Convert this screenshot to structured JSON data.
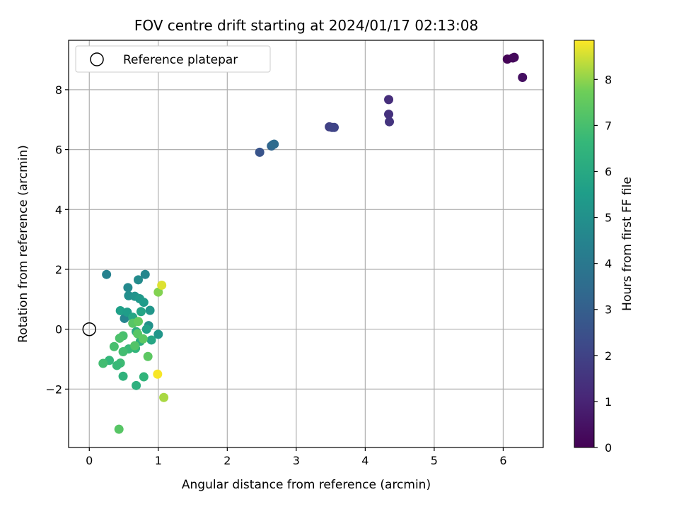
{
  "chart_data": {
    "type": "scatter",
    "title": "FOV centre drift starting at 2024/01/17 02:13:08",
    "xlabel": "Angular distance from reference (arcmin)",
    "ylabel": "Rotation from reference (arcmin)",
    "xlim": [
      -0.3,
      6.58
    ],
    "ylim": [
      -3.95,
      9.65
    ],
    "xticks": [
      0,
      1,
      2,
      3,
      4,
      5,
      6
    ],
    "xtick_labels": [
      "0",
      "1",
      "2",
      "3",
      "4",
      "5",
      "6"
    ],
    "yticks": [
      -2,
      0,
      2,
      4,
      6,
      8
    ],
    "ytick_labels": [
      "−2",
      "0",
      "2",
      "4",
      "6",
      "8"
    ],
    "grid": true,
    "legend": {
      "placement": "top-left",
      "entries": [
        "Reference platepar"
      ]
    },
    "reference_point": {
      "x": 0,
      "y": 0,
      "name": "Reference platepar",
      "marker": "open-circle"
    },
    "colorbar": {
      "label": "Hours from first FF file",
      "colormap": "viridis",
      "range": [
        0,
        8.85
      ],
      "ticks": [
        0,
        1,
        2,
        3,
        4,
        5,
        6,
        7,
        8
      ],
      "tick_labels": [
        "0",
        "1",
        "2",
        "3",
        "4",
        "5",
        "6",
        "7",
        "8"
      ]
    },
    "points": [
      {
        "x": 6.06,
        "y": 9.02,
        "c": 0.05
      },
      {
        "x": 6.14,
        "y": 9.06,
        "c": 0.15
      },
      {
        "x": 6.16,
        "y": 9.08,
        "c": 0.25
      },
      {
        "x": 6.28,
        "y": 8.41,
        "c": 0.4
      },
      {
        "x": 4.34,
        "y": 7.67,
        "c": 1.3
      },
      {
        "x": 4.34,
        "y": 7.18,
        "c": 1.4
      },
      {
        "x": 4.35,
        "y": 6.93,
        "c": 1.5
      },
      {
        "x": 3.48,
        "y": 6.76,
        "c": 1.9
      },
      {
        "x": 3.52,
        "y": 6.74,
        "c": 2.0
      },
      {
        "x": 3.55,
        "y": 6.74,
        "c": 2.05
      },
      {
        "x": 2.47,
        "y": 5.91,
        "c": 2.6
      },
      {
        "x": 2.64,
        "y": 6.12,
        "c": 3.2
      },
      {
        "x": 2.66,
        "y": 6.16,
        "c": 3.35
      },
      {
        "x": 2.68,
        "y": 6.18,
        "c": 3.5
      },
      {
        "x": 0.25,
        "y": 1.83,
        "c": 4.4
      },
      {
        "x": 0.81,
        "y": 1.83,
        "c": 4.6
      },
      {
        "x": 0.71,
        "y": 1.65,
        "c": 4.8
      },
      {
        "x": 0.56,
        "y": 1.39,
        "c": 4.7
      },
      {
        "x": 0.57,
        "y": 1.12,
        "c": 4.9
      },
      {
        "x": 0.66,
        "y": 1.1,
        "c": 5.1
      },
      {
        "x": 0.73,
        "y": 1.02,
        "c": 5.3
      },
      {
        "x": 0.79,
        "y": 0.9,
        "c": 5.4
      },
      {
        "x": 0.51,
        "y": 0.36,
        "c": 4.5
      },
      {
        "x": 0.88,
        "y": 0.63,
        "c": 5.2
      },
      {
        "x": 0.45,
        "y": 0.62,
        "c": 5.6
      },
      {
        "x": 0.55,
        "y": 0.57,
        "c": 5.5
      },
      {
        "x": 0.75,
        "y": 0.59,
        "c": 5.8
      },
      {
        "x": 0.63,
        "y": 0.4,
        "c": 5.9
      },
      {
        "x": 0.86,
        "y": 0.12,
        "c": 5.0
      },
      {
        "x": 1.0,
        "y": -0.17,
        "c": 5.2
      },
      {
        "x": 0.83,
        "y": 0.0,
        "c": 5.7
      },
      {
        "x": 0.9,
        "y": -0.36,
        "c": 5.9
      },
      {
        "x": 0.68,
        "y": -0.08,
        "c": 6.1
      },
      {
        "x": 0.74,
        "y": -0.4,
        "c": 6.2
      },
      {
        "x": 0.67,
        "y": -0.64,
        "c": 6.5
      },
      {
        "x": 0.57,
        "y": -0.66,
        "c": 6.7
      },
      {
        "x": 0.63,
        "y": 0.2,
        "c": 7.3
      },
      {
        "x": 0.71,
        "y": 0.26,
        "c": 7.5
      },
      {
        "x": 0.7,
        "y": -0.15,
        "c": 7.3
      },
      {
        "x": 0.78,
        "y": -0.32,
        "c": 7.4
      },
      {
        "x": 0.66,
        "y": -0.55,
        "c": 7.2
      },
      {
        "x": 0.49,
        "y": -0.22,
        "c": 7.0
      },
      {
        "x": 0.44,
        "y": -0.3,
        "c": 7.1
      },
      {
        "x": 0.36,
        "y": -0.58,
        "c": 7.0
      },
      {
        "x": 0.49,
        "y": -0.75,
        "c": 6.9
      },
      {
        "x": 0.45,
        "y": -1.13,
        "c": 6.8
      },
      {
        "x": 0.4,
        "y": -1.21,
        "c": 6.7
      },
      {
        "x": 0.29,
        "y": -1.04,
        "c": 6.6
      },
      {
        "x": 0.2,
        "y": -1.14,
        "c": 6.9
      },
      {
        "x": 0.49,
        "y": -1.57,
        "c": 6.4
      },
      {
        "x": 0.79,
        "y": -1.59,
        "c": 6.5
      },
      {
        "x": 0.68,
        "y": -1.88,
        "c": 6.3
      },
      {
        "x": 0.85,
        "y": -0.91,
        "c": 7.4
      },
      {
        "x": 0.43,
        "y": -3.34,
        "c": 7.3
      },
      {
        "x": 1.0,
        "y": 1.24,
        "c": 7.9
      },
      {
        "x": 1.05,
        "y": 1.47,
        "c": 8.6
      },
      {
        "x": 0.99,
        "y": -1.5,
        "c": 8.8
      },
      {
        "x": 1.08,
        "y": -2.28,
        "c": 8.2
      }
    ]
  }
}
